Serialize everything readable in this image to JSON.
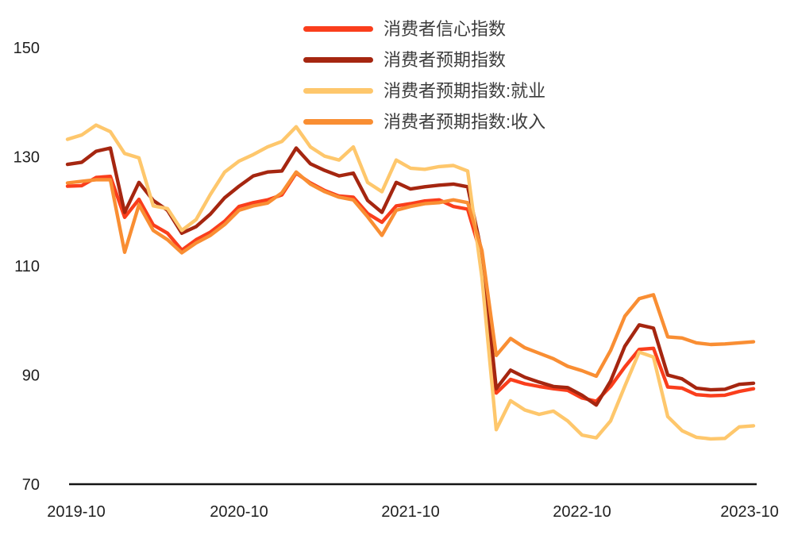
{
  "chart_data": {
    "type": "line",
    "title": "",
    "xlabel": "",
    "ylabel": "",
    "ylim": [
      70,
      150
    ],
    "grid": false,
    "legend_position": "top-center",
    "y_ticks": [
      150,
      130,
      110,
      90,
      70
    ],
    "x_ticks": [
      {
        "label": "2019-10",
        "month_index": 0
      },
      {
        "label": "2020-10",
        "month_index": 12
      },
      {
        "label": "2021-10",
        "month_index": 24
      },
      {
        "label": "2022-10",
        "month_index": 36
      },
      {
        "label": "2023-10",
        "month_index": 48
      }
    ],
    "x_labels": [
      "2019-10",
      "2019-11",
      "2019-12",
      "2020-01",
      "2020-02",
      "2020-03",
      "2020-04",
      "2020-05",
      "2020-06",
      "2020-07",
      "2020-08",
      "2020-09",
      "2020-10",
      "2020-11",
      "2020-12",
      "2021-01",
      "2021-02",
      "2021-03",
      "2021-04",
      "2021-05",
      "2021-06",
      "2021-07",
      "2021-08",
      "2021-09",
      "2021-10",
      "2021-11",
      "2021-12",
      "2022-01",
      "2022-02",
      "2022-03",
      "2022-04",
      "2022-05",
      "2022-06",
      "2022-07",
      "2022-08",
      "2022-09",
      "2022-10",
      "2022-11",
      "2022-12",
      "2023-01",
      "2023-02",
      "2023-03",
      "2023-04",
      "2023-05",
      "2023-06",
      "2023-07",
      "2023-08",
      "2023-09",
      "2023-10"
    ],
    "series": [
      {
        "id": "cci",
        "name": "消费者信心指数",
        "color": "#FA3E1C",
        "values": [
          124.6,
          124.7,
          126.2,
          126.4,
          118.9,
          122.2,
          117.5,
          116.0,
          112.9,
          114.8,
          116.2,
          118.2,
          120.9,
          121.6,
          122.1,
          123.0,
          127.0,
          125.2,
          123.8,
          122.8,
          122.6,
          119.6,
          118.0,
          121.0,
          121.4,
          121.9,
          122.1,
          120.9,
          120.4,
          111.5,
          86.7,
          89.2,
          88.4,
          87.9,
          87.5,
          87.2,
          85.8,
          85.2,
          87.9,
          91.5,
          94.7,
          94.9,
          87.8,
          87.6,
          86.4,
          86.2,
          86.3,
          87.0,
          87.5
        ]
      },
      {
        "id": "expectation",
        "name": "消费者预期指数",
        "color": "#A52610",
        "values": [
          128.6,
          129.0,
          131.0,
          131.6,
          119.8,
          125.3,
          122.0,
          120.2,
          116.0,
          117.2,
          119.5,
          122.5,
          124.6,
          126.5,
          127.2,
          127.4,
          131.6,
          128.7,
          127.5,
          126.5,
          127.0,
          122.0,
          119.8,
          125.3,
          124.1,
          124.5,
          124.8,
          125.0,
          124.5,
          112.3,
          87.5,
          90.9,
          89.6,
          88.7,
          87.9,
          87.7,
          86.3,
          84.5,
          88.9,
          95.3,
          99.2,
          98.6,
          90.0,
          89.3,
          87.6,
          87.3,
          87.4,
          88.3,
          88.5
        ]
      },
      {
        "id": "expectation_employment",
        "name": "消费者预期指数:就业",
        "color": "#FEC76C",
        "values": [
          133.2,
          134.0,
          135.8,
          134.6,
          130.6,
          129.8,
          121.0,
          120.5,
          116.5,
          118.5,
          123.1,
          127.2,
          129.2,
          130.4,
          131.8,
          132.8,
          135.5,
          131.8,
          130.1,
          129.4,
          131.8,
          125.3,
          123.6,
          129.4,
          127.9,
          127.7,
          128.2,
          128.4,
          127.4,
          107.8,
          80.0,
          85.3,
          83.6,
          82.8,
          83.4,
          81.6,
          79.0,
          78.5,
          81.6,
          88.0,
          94.2,
          93.3,
          82.4,
          79.8,
          78.6,
          78.3,
          78.4,
          80.5,
          80.7
        ]
      },
      {
        "id": "expectation_income",
        "name": "消费者预期指数:收入",
        "color": "#F98E33",
        "values": [
          125.2,
          125.5,
          125.8,
          125.8,
          112.5,
          121.2,
          116.5,
          114.8,
          112.4,
          114.2,
          115.6,
          117.6,
          120.2,
          121.0,
          121.5,
          123.4,
          127.2,
          125.0,
          123.6,
          122.6,
          122.1,
          119.0,
          115.6,
          120.2,
          120.9,
          121.4,
          121.6,
          122.1,
          121.6,
          112.8,
          93.6,
          96.7,
          95.0,
          94.0,
          93.0,
          91.6,
          90.8,
          89.8,
          94.5,
          100.8,
          104.0,
          104.7,
          97.0,
          96.8,
          95.9,
          95.6,
          95.7,
          95.9,
          96.1
        ]
      }
    ]
  }
}
